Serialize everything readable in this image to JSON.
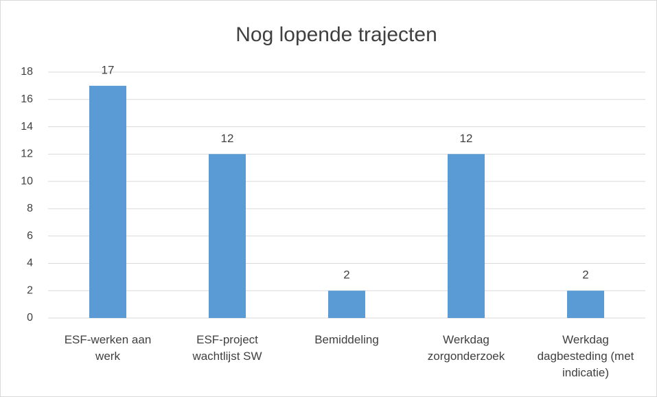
{
  "chart_data": {
    "type": "bar",
    "title": "Nog lopende trajecten",
    "categories": [
      "ESF-werken aan werk",
      "ESF-project wachtlijst SW",
      "Bemiddeling",
      "Werkdag zorgonderzoek",
      "Werkdag dagbesteding (met indicatie)"
    ],
    "values": [
      17,
      12,
      2,
      12,
      2
    ],
    "color": "#5b9bd5",
    "ylim": [
      0,
      18
    ],
    "yticks": [
      0,
      2,
      4,
      6,
      8,
      10,
      12,
      14,
      16,
      18
    ],
    "grid": true
  }
}
